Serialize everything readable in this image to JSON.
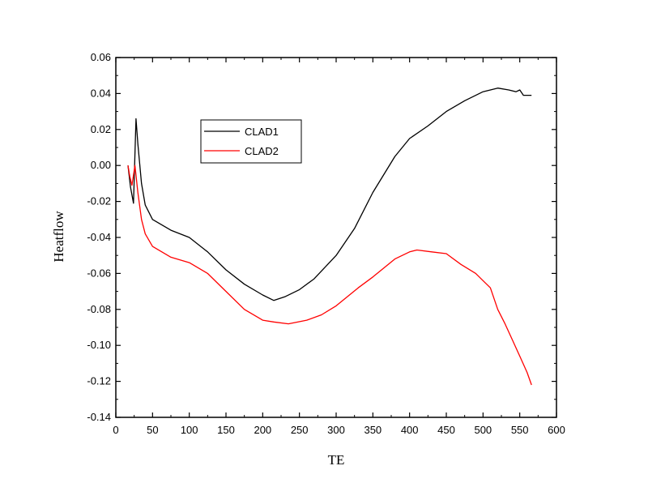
{
  "chart_data": {
    "type": "line",
    "title": "",
    "xlabel": "TE",
    "ylabel": "Heatflow",
    "xlim": [
      0,
      600
    ],
    "ylim": [
      -0.14,
      0.06
    ],
    "xticks": [
      0,
      50,
      100,
      150,
      200,
      250,
      300,
      350,
      400,
      450,
      500,
      550,
      600
    ],
    "yticks": [
      0.06,
      0.04,
      0.02,
      0.0,
      -0.02,
      -0.04,
      -0.06,
      -0.08,
      -0.1,
      -0.12,
      -0.14
    ],
    "ytick_labels": [
      "0.06",
      "0.04",
      "0.02",
      "0.00",
      "-0.02",
      "-0.04",
      "-0.06",
      "-0.08",
      "-0.10",
      "-0.12",
      "-0.14"
    ],
    "grid": false,
    "legend_position": "top-left-center",
    "series": [
      {
        "name": "CLAD1",
        "color": "#000000",
        "x": [
          16.5,
          20,
          24,
          27.5,
          30,
          35,
          40,
          50,
          75,
          100,
          125,
          150,
          175,
          200,
          215,
          230,
          250,
          270,
          300,
          325,
          350,
          380,
          400,
          425,
          450,
          475,
          500,
          520,
          535,
          545,
          550,
          555,
          560,
          566
        ],
        "y": [
          0.0,
          -0.012,
          -0.021,
          0.026,
          0.012,
          -0.01,
          -0.022,
          -0.03,
          -0.036,
          -0.04,
          -0.048,
          -0.058,
          -0.066,
          -0.072,
          -0.075,
          -0.073,
          -0.069,
          -0.063,
          -0.05,
          -0.035,
          -0.015,
          0.005,
          0.015,
          0.022,
          0.03,
          0.036,
          0.041,
          0.043,
          0.042,
          0.041,
          0.042,
          0.039,
          0.039,
          0.039
        ]
      },
      {
        "name": "CLAD2",
        "color": "#ff0000",
        "x": [
          16.5,
          19,
          22,
          26,
          30,
          35,
          40,
          50,
          75,
          100,
          125,
          150,
          175,
          200,
          215,
          235,
          260,
          280,
          300,
          330,
          350,
          380,
          400,
          410,
          430,
          450,
          470,
          490,
          500,
          510,
          520,
          530,
          540,
          550,
          560,
          566
        ],
        "y": [
          0.0,
          -0.006,
          -0.011,
          0.0,
          -0.015,
          -0.03,
          -0.038,
          -0.045,
          -0.051,
          -0.054,
          -0.06,
          -0.07,
          -0.08,
          -0.086,
          -0.087,
          -0.088,
          -0.086,
          -0.083,
          -0.078,
          -0.068,
          -0.062,
          -0.052,
          -0.048,
          -0.047,
          -0.048,
          -0.049,
          -0.055,
          -0.06,
          -0.064,
          -0.068,
          -0.08,
          -0.088,
          -0.097,
          -0.106,
          -0.115,
          -0.122
        ]
      }
    ]
  }
}
